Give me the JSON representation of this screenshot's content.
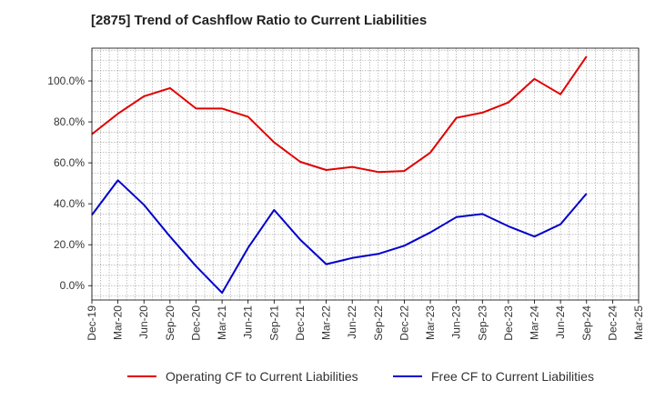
{
  "chart_data": {
    "type": "line",
    "title": "[2875]  Trend of Cashflow Ratio to Current Liabilities",
    "xlabel": "",
    "ylabel": "",
    "categories": [
      "Dec-19",
      "Mar-20",
      "Jun-20",
      "Sep-20",
      "Dec-20",
      "Mar-21",
      "Jun-21",
      "Sep-21",
      "Dec-21",
      "Mar-22",
      "Jun-22",
      "Sep-22",
      "Dec-22",
      "Mar-23",
      "Jun-23",
      "Sep-23",
      "Dec-23",
      "Mar-24",
      "Jun-24",
      "Sep-24",
      "Dec-24",
      "Mar-25"
    ],
    "y_ticks": [
      "0.0%",
      "20.0%",
      "40.0%",
      "60.0%",
      "80.0%",
      "100.0%"
    ],
    "ylim": [
      -7,
      116
    ],
    "grid": true,
    "legend_position": "bottom",
    "series": [
      {
        "name": "Operating CF to Current Liabilities",
        "color": "#e00000",
        "values": [
          74,
          84,
          92.5,
          96.5,
          86.5,
          86.5,
          82.5,
          70,
          60.5,
          56.5,
          58,
          55.5,
          56,
          65,
          82,
          84.5,
          89.5,
          101,
          93.5,
          112,
          null,
          null
        ]
      },
      {
        "name": "Free CF to Current Liabilities",
        "color": "#0000cc",
        "values": [
          34.5,
          51.5,
          39.5,
          24,
          9.5,
          -3.5,
          18.5,
          37,
          22.5,
          10.5,
          13.5,
          15.5,
          19.5,
          26,
          33.5,
          35,
          29,
          24,
          30,
          45,
          null,
          null
        ]
      }
    ]
  }
}
